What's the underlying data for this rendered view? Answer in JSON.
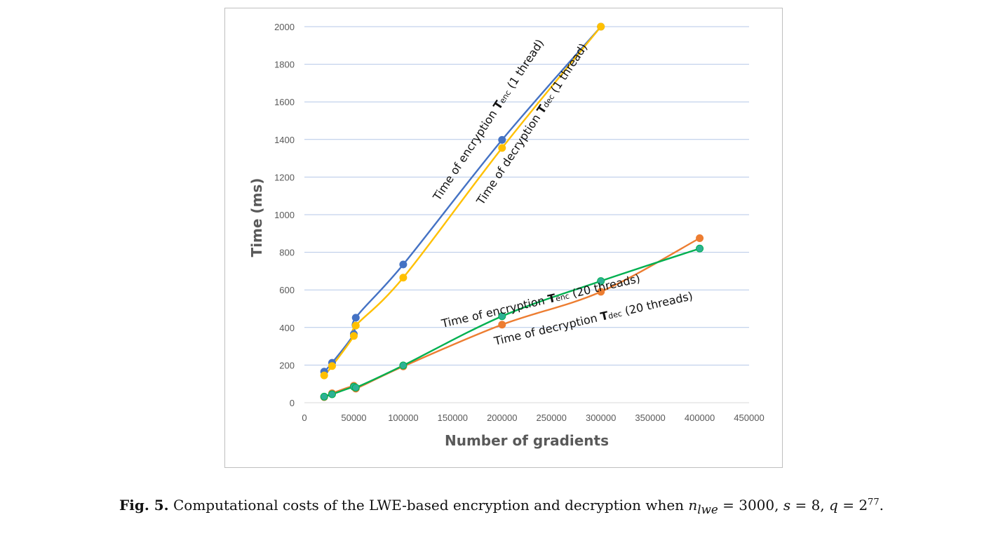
{
  "chart_data": {
    "type": "line",
    "xlabel": "Number of gradients",
    "ylabel": "Time (ms)",
    "xlim": [
      0,
      450000
    ],
    "ylim": [
      0,
      2000
    ],
    "xticks": [
      "0",
      "50000",
      "100000",
      "150000",
      "200000",
      "250000",
      "300000",
      "350000",
      "400000",
      "450000"
    ],
    "yticks": [
      "0",
      "200",
      "400",
      "600",
      "800",
      "1000",
      "1200",
      "1400",
      "1600",
      "1800",
      "2000"
    ],
    "grid": "horizontal",
    "series": [
      {
        "color": "#4472c4",
        "points": [
          [
            20000,
            165
          ],
          [
            28000,
            212
          ],
          [
            50000,
            365
          ],
          [
            52000,
            452
          ],
          [
            100000,
            735
          ],
          [
            200000,
            1398
          ],
          [
            300000,
            2000
          ]
        ]
      },
      {
        "color": "#ffc000",
        "points": [
          [
            20000,
            145
          ],
          [
            28000,
            195
          ],
          [
            50000,
            355
          ],
          [
            52000,
            410
          ],
          [
            100000,
            665
          ],
          [
            200000,
            1355
          ],
          [
            300000,
            2000
          ]
        ]
      },
      {
        "color": "#ed7d31",
        "points": [
          [
            20000,
            30
          ],
          [
            28000,
            50
          ],
          [
            50000,
            90
          ],
          [
            52000,
            75
          ],
          [
            100000,
            193
          ],
          [
            200000,
            415
          ],
          [
            300000,
            590
          ],
          [
            400000,
            875
          ]
        ]
      },
      {
        "color": "#00b050",
        "marker_color": "#2eb095",
        "points": [
          [
            20000,
            32
          ],
          [
            28000,
            45
          ],
          [
            50000,
            85
          ],
          [
            52000,
            80
          ],
          [
            100000,
            198
          ],
          [
            200000,
            460
          ],
          [
            300000,
            647
          ],
          [
            400000,
            820
          ]
        ]
      }
    ],
    "annotations": [
      {
        "prefix": "Time of encryption ",
        "sym": "T",
        "sub": "enc",
        "suffix": " (1 thread)"
      },
      {
        "prefix": "Time of decryption ",
        "sym": "T",
        "sub": "dec",
        "suffix": " (1 thread)"
      },
      {
        "prefix": "Time of encryption ",
        "sym": "T",
        "sub": "enc",
        "suffix": " (20 threads)"
      },
      {
        "prefix": "Time of decryption  ",
        "sym": "T",
        "sub": "dec",
        "suffix": " (20 threads)"
      }
    ]
  },
  "caption": {
    "label": "Fig. 5.",
    "text": " Computational costs of the LWE-based encryption and decryption when ",
    "n": "n",
    "n_sub": "lwe",
    "eq1": " = 3000, ",
    "s": "s",
    "eq2": " = 8, ",
    "q": "q",
    "eq3": " = 2",
    "q_exp": "77",
    "end": "."
  }
}
